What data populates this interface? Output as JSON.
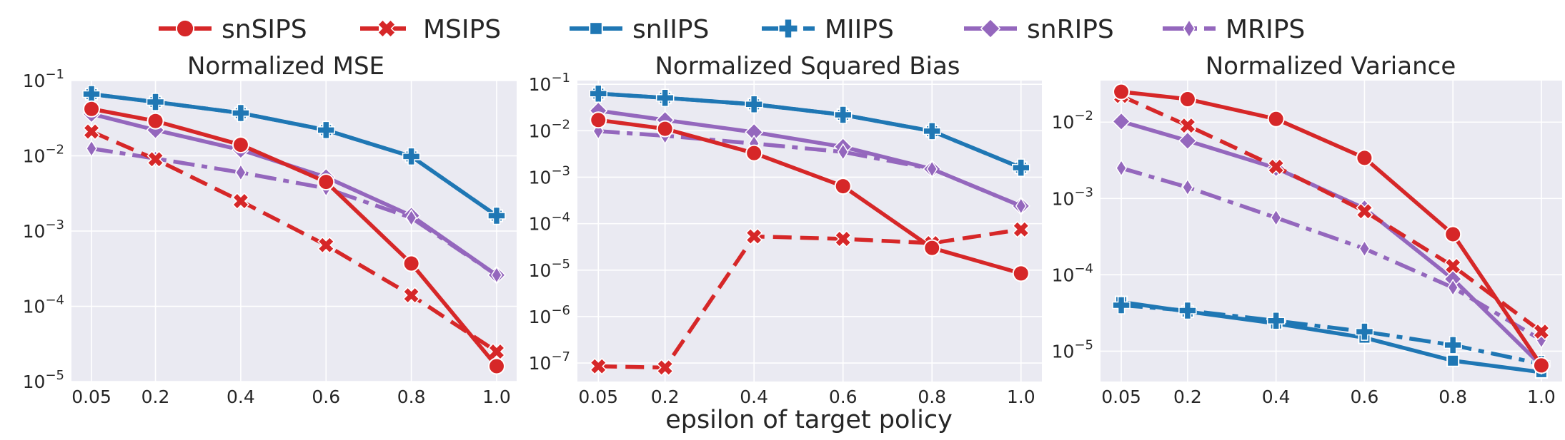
{
  "chart_data": [
    {
      "type": "line",
      "title": "Normalized MSE",
      "yscale": "log",
      "ylim": [
        1e-05,
        0.1
      ],
      "x": [
        0.05,
        0.2,
        0.4,
        0.6,
        0.8,
        1.0
      ],
      "xtick_labels": [
        "0.05",
        "0.2",
        "0.4",
        "0.6",
        "0.8",
        "1.0"
      ],
      "ytick_labels": [
        {
          "value": 1e-05,
          "base": "10",
          "exp": "−5"
        },
        {
          "value": 0.0001,
          "base": "10",
          "exp": "−4"
        },
        {
          "value": 0.001,
          "base": "10",
          "exp": "−3"
        },
        {
          "value": 0.01,
          "base": "10",
          "exp": "−2"
        },
        {
          "value": 0.1,
          "base": "10",
          "exp": "−1"
        }
      ],
      "series": [
        {
          "name": "snSIPS",
          "values": [
            0.042,
            0.029,
            0.014,
            0.0045,
            0.00037,
            1.6e-05
          ]
        },
        {
          "name": "MSIPS",
          "values": [
            0.021,
            0.009,
            0.0025,
            0.00065,
            0.00014,
            2.5e-05
          ]
        },
        {
          "name": "snIIPS",
          "values": [
            0.066,
            0.052,
            0.037,
            0.022,
            0.0098,
            0.0016
          ]
        },
        {
          "name": "MIIPS",
          "values": [
            0.066,
            0.052,
            0.037,
            0.022,
            0.0098,
            0.0016
          ]
        },
        {
          "name": "snRIPS",
          "values": [
            0.036,
            0.022,
            0.012,
            0.0052,
            0.0016,
            0.00026
          ]
        },
        {
          "name": "MRIPS",
          "values": [
            0.0125,
            0.0092,
            0.006,
            0.0037,
            0.0015,
            0.00026
          ]
        }
      ]
    },
    {
      "type": "line",
      "title": "Normalized Squared Bias",
      "yscale": "log",
      "ylim": [
        4e-08,
        0.12
      ],
      "x": [
        0.05,
        0.2,
        0.4,
        0.6,
        0.8,
        1.0
      ],
      "xtick_labels": [
        "0.05",
        "0.2",
        "0.4",
        "0.6",
        "0.8",
        "1.0"
      ],
      "ytick_labels": [
        {
          "value": 1e-07,
          "base": "10",
          "exp": "−7"
        },
        {
          "value": 1e-06,
          "base": "10",
          "exp": "−6"
        },
        {
          "value": 1e-05,
          "base": "10",
          "exp": "−5"
        },
        {
          "value": 0.0001,
          "base": "10",
          "exp": "−4"
        },
        {
          "value": 0.001,
          "base": "10",
          "exp": "−3"
        },
        {
          "value": 0.01,
          "base": "10",
          "exp": "−2"
        },
        {
          "value": 0.1,
          "base": "10",
          "exp": "−1"
        }
      ],
      "series": [
        {
          "name": "snSIPS",
          "values": [
            0.017,
            0.011,
            0.0033,
            0.00064,
            3e-05,
            8.5e-06
          ]
        },
        {
          "name": "MSIPS",
          "values": [
            8.5e-08,
            8e-08,
            5.3e-05,
            4.7e-05,
            3.8e-05,
            7.5e-05
          ]
        },
        {
          "name": "snIIPS",
          "values": [
            0.063,
            0.051,
            0.037,
            0.022,
            0.0098,
            0.0016
          ]
        },
        {
          "name": "MIIPS",
          "values": [
            0.063,
            0.051,
            0.037,
            0.022,
            0.0098,
            0.0016
          ]
        },
        {
          "name": "snRIPS",
          "values": [
            0.027,
            0.017,
            0.0093,
            0.0045,
            0.0015,
            0.00024
          ]
        },
        {
          "name": "MRIPS",
          "values": [
            0.0098,
            0.0078,
            0.0053,
            0.0035,
            0.0015,
            0.00024
          ]
        }
      ]
    },
    {
      "type": "line",
      "title": "Normalized Variance",
      "yscale": "log",
      "ylim": [
        4e-06,
        0.035
      ],
      "x": [
        0.05,
        0.2,
        0.4,
        0.6,
        0.8,
        1.0
      ],
      "xtick_labels": [
        "0.05",
        "0.2",
        "0.4",
        "0.6",
        "0.8",
        "1.0"
      ],
      "ytick_labels": [
        {
          "value": 1e-05,
          "base": "10",
          "exp": "−5"
        },
        {
          "value": 0.0001,
          "base": "10",
          "exp": "−4"
        },
        {
          "value": 0.001,
          "base": "10",
          "exp": "−3"
        },
        {
          "value": 0.01,
          "base": "10",
          "exp": "−2"
        }
      ],
      "series": [
        {
          "name": "snSIPS",
          "values": [
            0.025,
            0.02,
            0.011,
            0.0034,
            0.00034,
            6.5e-06
          ]
        },
        {
          "name": "MSIPS",
          "values": [
            0.022,
            0.009,
            0.0026,
            0.00068,
            0.00013,
            1.8e-05
          ]
        },
        {
          "name": "snIIPS",
          "values": [
            4.4e-05,
            3.3e-05,
            2.3e-05,
            1.5e-05,
            7.5e-06,
            5.3e-06
          ]
        },
        {
          "name": "MIIPS",
          "values": [
            4e-05,
            3.4e-05,
            2.5e-05,
            1.8e-05,
            1.2e-05,
            6.8e-06
          ]
        },
        {
          "name": "snRIPS",
          "values": [
            0.0102,
            0.0057,
            0.0025,
            0.00074,
            8.8e-05,
            6.5e-06
          ]
        },
        {
          "name": "MRIPS",
          "values": [
            0.0025,
            0.0014,
            0.00056,
            0.00022,
            6.8e-05,
            1.4e-05
          ]
        }
      ]
    }
  ],
  "legend": {
    "placement": "top-center",
    "entries": [
      {
        "name": "snSIPS",
        "color": "#d62728",
        "dash": "solid",
        "marker": "circle"
      },
      {
        "name": "MSIPS",
        "color": "#d62728",
        "dash": "dashed",
        "marker": "x"
      },
      {
        "name": "snIIPS",
        "color": "#1f77b4",
        "dash": "solid",
        "marker": "square"
      },
      {
        "name": "MIIPS",
        "color": "#1f77b4",
        "dash": "dashdot",
        "marker": "plus"
      },
      {
        "name": "snRIPS",
        "color": "#9467bd",
        "dash": "solid",
        "marker": "diamond"
      },
      {
        "name": "MRIPS",
        "color": "#9467bd",
        "dash": "dashdot",
        "marker": "thin-diamond"
      }
    ]
  },
  "xlabel": "epsilon of target policy"
}
